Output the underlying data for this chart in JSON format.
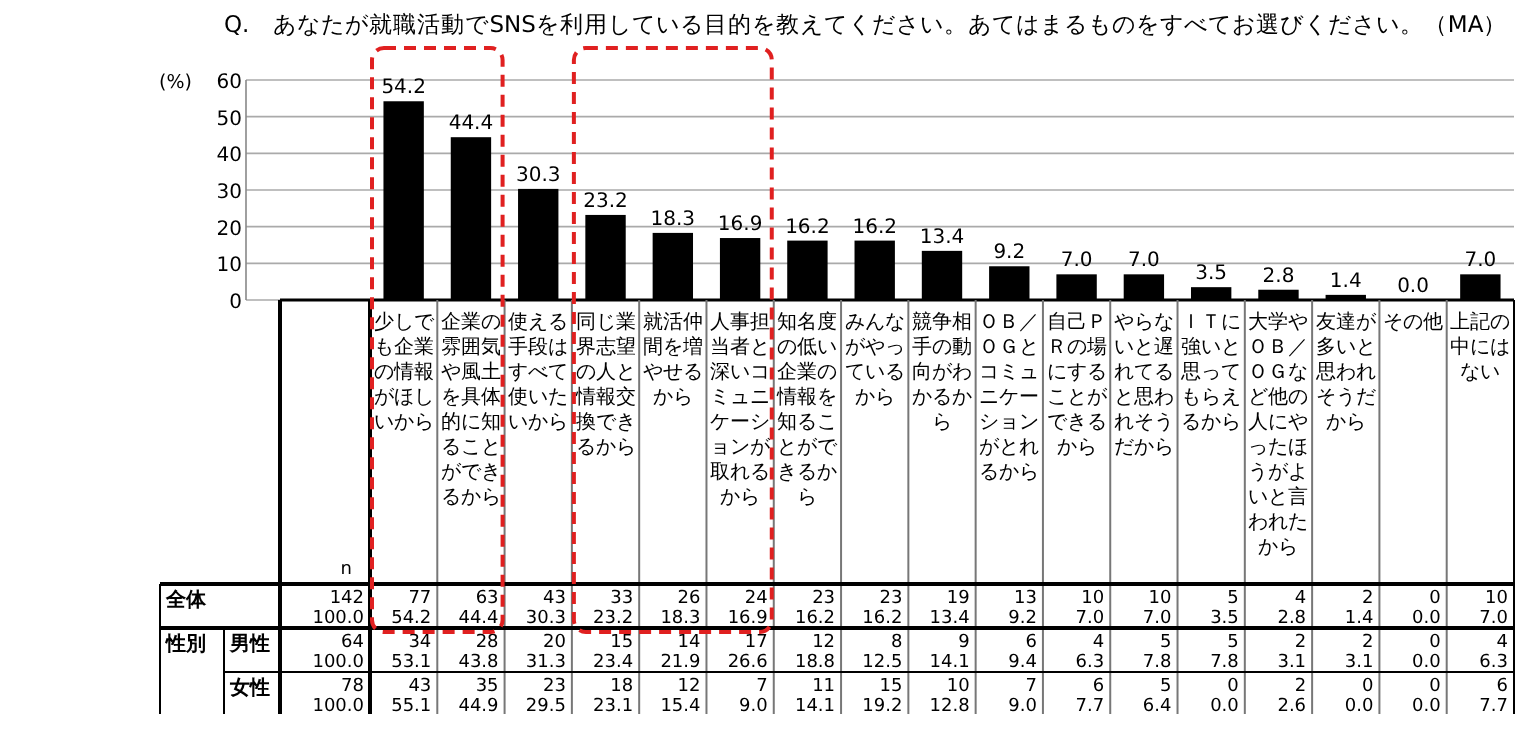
{
  "chart_data": {
    "type": "bar",
    "title": "Q.　あなたが就職活動でSNSを利用している目的を教えてください。あてはまるものをすべてお選びください。（MA）",
    "ylabel": "(%)",
    "categories": [
      "少しでも企業の情報がほしいから",
      "企業の雰囲気や風土を具体的に知ることができるから",
      "使える手段はすべて使いたいから",
      "同じ業界志望の人と情報交換できるから",
      "就活仲間を増やせるから",
      "人事担当者と深いコミュニケーションが取れるから",
      "知名度の低い企業の情報を知ることができるから",
      "みんながやっているから",
      "競争相手の動向がわかるから",
      "ＯＢ／ＯＧとコミュニケーションがとれるから",
      "自己ＰＲの場にすることができるから",
      "やらないと遅れてると思われそうだから",
      "ＩＴに強いと思ってもらえるから",
      "大学やＯＢ／ＯＧなど他の人にやったほうがよいと言われたから",
      "友達が多いと思われそうだから",
      "その他",
      "上記の中にはない"
    ],
    "values": [
      54.2,
      44.4,
      30.3,
      23.2,
      18.3,
      16.9,
      16.2,
      16.2,
      13.4,
      9.2,
      7.0,
      7.0,
      3.5,
      2.8,
      1.4,
      0.0,
      7.0
    ],
    "color": "#000000",
    "value_labels": [
      "54.2",
      "44.4",
      "30.3",
      "23.2",
      "18.3",
      "16.9",
      "16.2",
      "16.2",
      "13.4",
      "9.2",
      "7.0",
      "7.0",
      "3.5",
      "2.8",
      "1.4",
      "0.0",
      "7.0"
    ],
    "ylim": [
      0,
      60
    ],
    "yticks": [
      0,
      10,
      20,
      30,
      40,
      50,
      60
    ],
    "grid": "y",
    "annotations": [
      "n",
      "全体",
      "性別",
      "男性",
      "女性",
      "142\n100.0",
      "77\n54.2",
      "63\n44.4",
      "43\n30.3",
      "33\n23.2",
      "26\n18.3",
      "24\n16.9",
      "23\n16.2",
      "23\n16.2",
      "19\n13.4",
      "13\n9.2",
      "10\n7.0",
      "10\n7.0",
      "5\n3.5",
      "4\n2.8",
      "2\n1.4",
      "0\n0.0",
      "10\n7.0",
      "64\n100.0",
      "34\n53.1",
      "28\n43.8",
      "20\n31.3",
      "15\n23.4",
      "14\n21.9",
      "17\n26.6",
      "12\n18.8",
      "8\n12.5",
      "9\n14.1",
      "6\n9.4",
      "4\n6.3",
      "5\n7.8",
      "5\n7.8",
      "2\n3.1",
      "2\n3.1",
      "0\n0.0",
      "4\n6.3",
      "78\n100.0",
      "43\n55.1",
      "35\n44.9",
      "23\n29.5",
      "18\n23.1",
      "12\n15.4",
      "7\n9.0",
      "11\n14.1",
      "15\n19.2",
      "10\n12.8",
      "7\n9.0",
      "6\n7.7",
      "5\n6.4",
      "0\n0.0",
      "2\n2.6",
      "0\n0.0",
      "0\n0.0",
      "6\n7.7"
    ]
  }
}
